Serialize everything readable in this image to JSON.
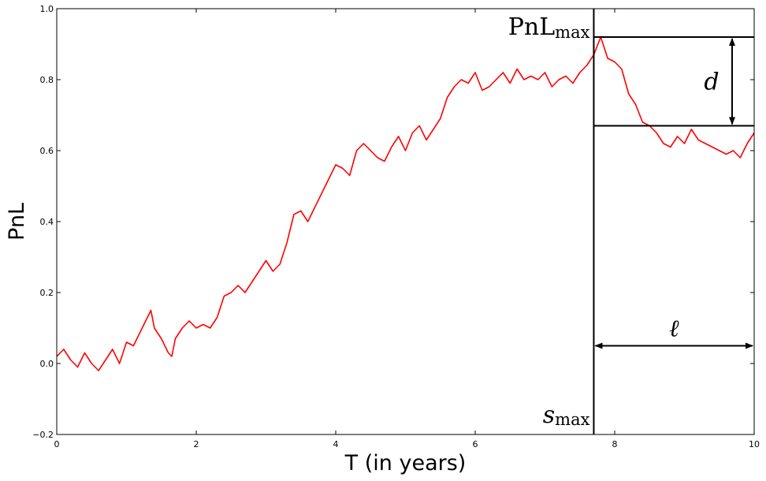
{
  "chart_data": {
    "type": "line",
    "title": "",
    "xlabel": "T (in years)",
    "ylabel": "PnL",
    "xlim": [
      0,
      10
    ],
    "ylim": [
      -0.2,
      1.0
    ],
    "xticks": [
      0,
      2,
      4,
      6,
      8,
      10
    ],
    "yticks": [
      -0.2,
      0.0,
      0.2,
      0.4,
      0.6,
      0.8,
      1.0
    ],
    "xtick_labels": [
      "0",
      "2",
      "4",
      "6",
      "8",
      "10"
    ],
    "ytick_labels": [
      "−0.2",
      "0.0",
      "0.2",
      "0.4",
      "0.6",
      "0.8",
      "1.0"
    ],
    "grid": false,
    "series": [
      {
        "color": "#ff0000",
        "x": [
          0,
          0.1,
          0.2,
          0.3,
          0.4,
          0.5,
          0.6,
          0.7,
          0.8,
          0.9,
          1.0,
          1.1,
          1.2,
          1.3,
          1.35,
          1.4,
          1.5,
          1.6,
          1.65,
          1.7,
          1.8,
          1.9,
          2.0,
          2.1,
          2.2,
          2.3,
          2.4,
          2.5,
          2.6,
          2.7,
          2.8,
          2.9,
          3.0,
          3.1,
          3.2,
          3.3,
          3.4,
          3.5,
          3.6,
          3.7,
          3.8,
          3.9,
          4.0,
          4.1,
          4.2,
          4.3,
          4.4,
          4.5,
          4.6,
          4.7,
          4.8,
          4.9,
          5.0,
          5.1,
          5.2,
          5.3,
          5.4,
          5.5,
          5.6,
          5.7,
          5.8,
          5.9,
          6.0,
          6.1,
          6.2,
          6.3,
          6.4,
          6.5,
          6.6,
          6.7,
          6.8,
          6.9,
          7.0,
          7.1,
          7.2,
          7.3,
          7.4,
          7.5,
          7.6,
          7.7,
          7.8,
          7.9,
          8.0,
          8.1,
          8.2,
          8.3,
          8.4,
          8.5,
          8.6,
          8.7,
          8.8,
          8.9,
          9.0,
          9.1,
          9.2,
          9.3,
          9.4,
          9.5,
          9.6,
          9.7,
          9.8,
          9.9,
          10.0
        ],
        "y": [
          0.02,
          0.04,
          0.01,
          -0.01,
          0.03,
          0.0,
          -0.02,
          0.01,
          0.04,
          0.0,
          0.06,
          0.05,
          0.09,
          0.13,
          0.15,
          0.1,
          0.07,
          0.03,
          0.02,
          0.07,
          0.1,
          0.12,
          0.1,
          0.11,
          0.1,
          0.13,
          0.19,
          0.2,
          0.22,
          0.2,
          0.23,
          0.26,
          0.29,
          0.26,
          0.28,
          0.34,
          0.42,
          0.43,
          0.4,
          0.44,
          0.48,
          0.52,
          0.56,
          0.55,
          0.53,
          0.6,
          0.62,
          0.6,
          0.58,
          0.57,
          0.61,
          0.64,
          0.6,
          0.65,
          0.67,
          0.63,
          0.66,
          0.69,
          0.75,
          0.78,
          0.8,
          0.79,
          0.82,
          0.77,
          0.78,
          0.8,
          0.82,
          0.79,
          0.83,
          0.8,
          0.81,
          0.8,
          0.82,
          0.78,
          0.8,
          0.81,
          0.79,
          0.82,
          0.84,
          0.87,
          0.92,
          0.86,
          0.85,
          0.83,
          0.76,
          0.73,
          0.68,
          0.67,
          0.65,
          0.62,
          0.61,
          0.64,
          0.62,
          0.66,
          0.63,
          0.62,
          0.61,
          0.6,
          0.59,
          0.6,
          0.58,
          0.62,
          0.65
        ]
      }
    ],
    "annotations": {
      "s_max_x": 7.7,
      "pnl_max_y": 0.92,
      "drawdown_bottom_y": 0.67,
      "duration_arrow_y": 0.05,
      "label_pnl_max_main": "PnL",
      "label_pnl_max_sub": "max",
      "label_s_max_main": "s",
      "label_s_max_sub": "max",
      "label_d": "d",
      "label_ell": "ℓ"
    }
  }
}
